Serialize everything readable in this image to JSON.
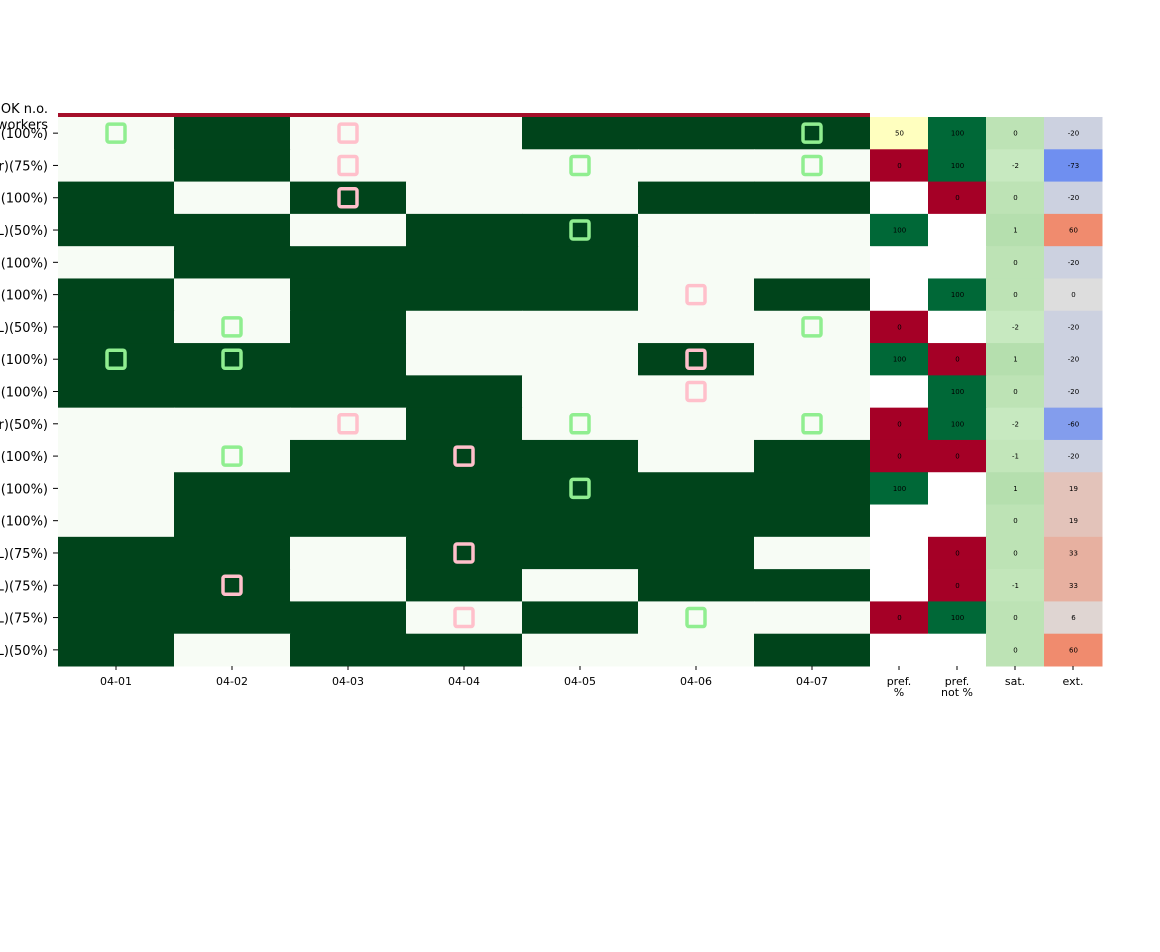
{
  "chart_data": {
    "type": "heatmap",
    "header_label_lines": [
      "OK n.o.",
      "workers"
    ],
    "dates": [
      "04-01",
      "04-02",
      "04-03",
      "04-04",
      "04-05",
      "04-06",
      "04-07"
    ],
    "stat_columns": [
      {
        "lines": [
          "pref.",
          "%"
        ]
      },
      {
        "lines": [
          "pref.",
          "not %"
        ]
      },
      {
        "lines": [
          "sat."
        ]
      },
      {
        "lines": [
          "ext."
        ]
      }
    ],
    "rows": [
      {
        "label": "(100%)",
        "shift": [
          0,
          1,
          0,
          0,
          1,
          1,
          1
        ],
        "pref_mark": [
          1,
          0,
          0,
          0,
          0,
          0,
          1
        ],
        "not_mark": [
          0,
          0,
          1,
          0,
          0,
          0,
          0
        ],
        "pref_pct": 50,
        "pref_not_pct": 100,
        "sat": 0,
        "ext": -20
      },
      {
        "label": "r)(75%)",
        "shift": [
          0,
          1,
          0,
          0,
          0,
          0,
          0
        ],
        "pref_mark": [
          0,
          0,
          0,
          0,
          1,
          0,
          1
        ],
        "not_mark": [
          0,
          0,
          1,
          0,
          0,
          0,
          0
        ],
        "pref_pct": 0,
        "pref_not_pct": 100,
        "sat": -2,
        "ext": -73
      },
      {
        "label": "(100%)",
        "shift": [
          1,
          0,
          1,
          0,
          0,
          1,
          1
        ],
        "pref_mark": [
          0,
          0,
          0,
          0,
          0,
          0,
          0
        ],
        "not_mark": [
          0,
          0,
          1,
          0,
          0,
          0,
          0
        ],
        "pref_pct": null,
        "pref_not_pct": 0,
        "sat": 0,
        "ext": -20
      },
      {
        "label": "L)(50%)",
        "shift": [
          1,
          1,
          0,
          1,
          1,
          0,
          0
        ],
        "pref_mark": [
          0,
          0,
          0,
          0,
          1,
          0,
          0
        ],
        "not_mark": [
          0,
          0,
          0,
          0,
          0,
          0,
          0
        ],
        "pref_pct": 100,
        "pref_not_pct": null,
        "sat": 1,
        "ext": 60
      },
      {
        "label": "(100%)",
        "shift": [
          0,
          1,
          1,
          1,
          1,
          0,
          0
        ],
        "pref_mark": [
          0,
          0,
          0,
          0,
          0,
          0,
          0
        ],
        "not_mark": [
          0,
          0,
          0,
          0,
          0,
          0,
          0
        ],
        "pref_pct": null,
        "pref_not_pct": null,
        "sat": 0,
        "ext": -20
      },
      {
        "label": "(100%)",
        "shift": [
          1,
          0,
          1,
          1,
          1,
          0,
          1
        ],
        "pref_mark": [
          0,
          0,
          0,
          0,
          0,
          0,
          0
        ],
        "not_mark": [
          0,
          0,
          0,
          0,
          0,
          1,
          0
        ],
        "pref_pct": null,
        "pref_not_pct": 100,
        "sat": 0,
        "ext": 0
      },
      {
        "label": "L)(50%)",
        "shift": [
          1,
          0,
          1,
          0,
          0,
          0,
          0
        ],
        "pref_mark": [
          0,
          1,
          0,
          0,
          0,
          0,
          1
        ],
        "not_mark": [
          0,
          0,
          0,
          0,
          0,
          0,
          0
        ],
        "pref_pct": 0,
        "pref_not_pct": null,
        "sat": -2,
        "ext": -20
      },
      {
        "label": "(100%)",
        "shift": [
          1,
          1,
          1,
          0,
          0,
          1,
          0
        ],
        "pref_mark": [
          1,
          1,
          0,
          0,
          0,
          0,
          0
        ],
        "not_mark": [
          0,
          0,
          0,
          0,
          0,
          1,
          0
        ],
        "pref_pct": 100,
        "pref_not_pct": 0,
        "sat": 1,
        "ext": -20
      },
      {
        "label": "(100%)",
        "shift": [
          1,
          1,
          1,
          1,
          0,
          0,
          0
        ],
        "pref_mark": [
          0,
          0,
          0,
          0,
          0,
          0,
          0
        ],
        "not_mark": [
          0,
          0,
          0,
          0,
          0,
          1,
          0
        ],
        "pref_pct": null,
        "pref_not_pct": 100,
        "sat": 0,
        "ext": -20
      },
      {
        "label": "r)(50%)",
        "shift": [
          0,
          0,
          0,
          1,
          0,
          0,
          0
        ],
        "pref_mark": [
          0,
          0,
          0,
          0,
          1,
          0,
          1
        ],
        "not_mark": [
          0,
          0,
          1,
          0,
          0,
          0,
          0
        ],
        "pref_pct": 0,
        "pref_not_pct": 100,
        "sat": -2,
        "ext": -60
      },
      {
        "label": "(100%)",
        "shift": [
          0,
          0,
          1,
          1,
          1,
          0,
          1
        ],
        "pref_mark": [
          0,
          1,
          0,
          0,
          0,
          0,
          0
        ],
        "not_mark": [
          0,
          0,
          0,
          1,
          0,
          0,
          0
        ],
        "pref_pct": 0,
        "pref_not_pct": 0,
        "sat": -1,
        "ext": -20
      },
      {
        "label": "(100%)",
        "shift": [
          0,
          1,
          1,
          1,
          1,
          1,
          1
        ],
        "pref_mark": [
          0,
          0,
          0,
          0,
          1,
          0,
          0
        ],
        "not_mark": [
          0,
          0,
          0,
          0,
          0,
          0,
          0
        ],
        "pref_pct": 100,
        "pref_not_pct": null,
        "sat": 1,
        "ext": 19
      },
      {
        "label": "(100%)",
        "shift": [
          0,
          1,
          1,
          1,
          1,
          1,
          1
        ],
        "pref_mark": [
          0,
          0,
          0,
          0,
          0,
          0,
          0
        ],
        "not_mark": [
          0,
          0,
          0,
          0,
          0,
          0,
          0
        ],
        "pref_pct": null,
        "pref_not_pct": null,
        "sat": 0,
        "ext": 19
      },
      {
        "label": "L)(75%)",
        "shift": [
          1,
          1,
          0,
          1,
          1,
          1,
          0
        ],
        "pref_mark": [
          0,
          0,
          0,
          0,
          0,
          0,
          0
        ],
        "not_mark": [
          0,
          0,
          0,
          1,
          0,
          0,
          0
        ],
        "pref_pct": null,
        "pref_not_pct": 0,
        "sat": 0,
        "ext": 33
      },
      {
        "label": "L)(75%)",
        "shift": [
          1,
          1,
          0,
          1,
          0,
          1,
          1
        ],
        "pref_mark": [
          0,
          0,
          0,
          0,
          0,
          0,
          0
        ],
        "not_mark": [
          0,
          1,
          0,
          0,
          0,
          0,
          0
        ],
        "pref_pct": null,
        "pref_not_pct": 0,
        "sat": -1,
        "ext": 33
      },
      {
        "label": "L)(75%)",
        "shift": [
          1,
          1,
          1,
          0,
          1,
          0,
          0
        ],
        "pref_mark": [
          0,
          0,
          0,
          0,
          0,
          1,
          0
        ],
        "not_mark": [
          0,
          0,
          0,
          1,
          0,
          0,
          0
        ],
        "pref_pct": 0,
        "pref_not_pct": 100,
        "sat": 0,
        "ext": 6
      },
      {
        "label": "L)(50%)",
        "shift": [
          1,
          0,
          1,
          1,
          0,
          0,
          1
        ],
        "pref_mark": [
          0,
          0,
          0,
          0,
          0,
          0,
          0
        ],
        "not_mark": [
          0,
          0,
          0,
          0,
          0,
          0,
          0
        ],
        "pref_pct": null,
        "pref_not_pct": null,
        "sat": 0,
        "ext": 60
      }
    ],
    "colors": {
      "shift_on": "#00441b",
      "shift_off": "#f7fcf5",
      "pref_marker": "#90ee90",
      "not_pref_marker": "#ffc0cb",
      "top_band": "#a50f2a",
      "pct_low": "#a50026",
      "pct_mid": "#ffffbf",
      "pct_high": "#006837",
      "sat_minus2": "#c7e9c0",
      "sat_minus1": "#c2e6ba",
      "sat_zero": "#bde3b5",
      "sat_plus1": "#b5dfae",
      "ext_cold": "#6f8ff0",
      "ext_neutral": "#dddddd",
      "ext_hot": "#f08b6e"
    }
  }
}
